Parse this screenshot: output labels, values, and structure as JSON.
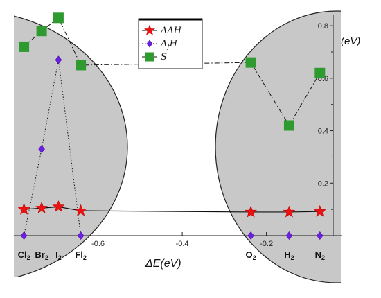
{
  "chart_data": {
    "type": "line",
    "xlabel": "ΔE(eV)",
    "y_unit_label": "(eV)",
    "x_ticks": [
      -0.6,
      -0.4,
      -0.2
    ],
    "x_tick_labels": [
      "-0.6",
      "-0.4",
      "-0.2"
    ],
    "y_ticks": [
      0.2,
      0.4,
      0.6,
      0.8
    ],
    "y_tick_labels": [
      "0.2",
      "0.4",
      "0.6",
      "0.8"
    ],
    "xlim": [
      -0.8,
      -0.02
    ],
    "ylim": [
      0,
      0.84
    ],
    "categories": [
      {
        "base": "Cl",
        "sub": "2",
        "x": -0.776
      },
      {
        "base": "Br",
        "sub": "2",
        "x": -0.734
      },
      {
        "base": "I",
        "sub": "2",
        "x": -0.694
      },
      {
        "base": "Fl",
        "sub": "2",
        "x": -0.641
      },
      {
        "base": "O",
        "sub": "2",
        "x": -0.237
      },
      {
        "base": "H",
        "sub": "2",
        "x": -0.146
      },
      {
        "base": "N",
        "sub": "2",
        "x": -0.073
      }
    ],
    "series": [
      {
        "name": "ΔΔH",
        "marker": "star",
        "color": "#ee1111",
        "line": "solid",
        "values": [
          0.1,
          0.105,
          0.11,
          0.095,
          0.09,
          0.09,
          0.092
        ]
      },
      {
        "name": "Δ_fH",
        "marker": "diamond",
        "color": "#6b1fe0",
        "line": "dotted",
        "values": [
          0.0,
          0.33,
          0.67,
          0.0,
          0.0,
          0.0,
          0.0
        ]
      },
      {
        "name": "S",
        "marker": "square",
        "color": "#2f9a2f",
        "line": "dashdot",
        "values": [
          0.72,
          0.78,
          0.83,
          0.65,
          0.66,
          0.42,
          0.62
        ]
      }
    ],
    "legend_position": "top-center",
    "grid": false
  },
  "legend": {
    "items": [
      {
        "prefix": "ΔΔ",
        "letter": "H",
        "sub": ""
      },
      {
        "prefix": "Δ",
        "letter": "H",
        "sub": "f"
      },
      {
        "prefix": "",
        "letter": "S",
        "sub": ""
      }
    ]
  }
}
